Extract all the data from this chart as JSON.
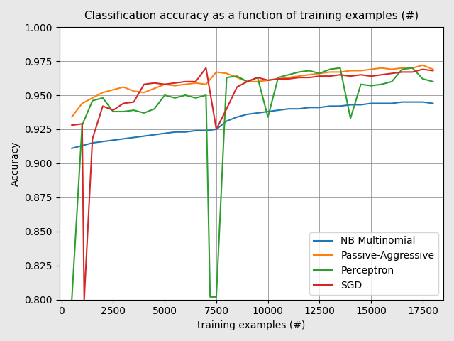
{
  "title": "Classification accuracy as a function of training examples (#)",
  "xlabel": "training examples (#)",
  "ylabel": "Accuracy",
  "ylim": [
    0.8,
    1.0
  ],
  "xlim": [
    -100,
    18500
  ],
  "grid": true,
  "series": {
    "NB Multinomial": {
      "color": "#1f77b4",
      "x": [
        500,
        1000,
        1500,
        2000,
        2500,
        3000,
        3500,
        4000,
        4500,
        5000,
        5500,
        6000,
        6500,
        7000,
        7500,
        8000,
        8500,
        9000,
        9500,
        10000,
        10500,
        11000,
        11500,
        12000,
        12500,
        13000,
        13500,
        14000,
        14500,
        15000,
        15500,
        16000,
        16500,
        17000,
        17500,
        18000
      ],
      "y": [
        0.911,
        0.913,
        0.915,
        0.916,
        0.917,
        0.918,
        0.919,
        0.92,
        0.921,
        0.922,
        0.923,
        0.923,
        0.924,
        0.924,
        0.925,
        0.931,
        0.934,
        0.936,
        0.937,
        0.938,
        0.939,
        0.94,
        0.94,
        0.941,
        0.941,
        0.942,
        0.942,
        0.943,
        0.943,
        0.944,
        0.944,
        0.944,
        0.945,
        0.945,
        0.945,
        0.944
      ]
    },
    "Passive-Aggressive": {
      "color": "#ff7f0e",
      "x": [
        500,
        1000,
        1500,
        2000,
        2500,
        3000,
        3500,
        4000,
        4500,
        5000,
        5500,
        6000,
        6500,
        7000,
        7500,
        8000,
        8500,
        9000,
        9500,
        10000,
        10500,
        11000,
        11500,
        12000,
        12500,
        13000,
        13500,
        14000,
        14500,
        15000,
        15500,
        16000,
        16500,
        17000,
        17500,
        18000
      ],
      "y": [
        0.934,
        0.944,
        0.948,
        0.952,
        0.954,
        0.956,
        0.953,
        0.952,
        0.955,
        0.958,
        0.957,
        0.958,
        0.959,
        0.958,
        0.967,
        0.966,
        0.963,
        0.96,
        0.96,
        0.961,
        0.962,
        0.963,
        0.964,
        0.965,
        0.966,
        0.967,
        0.967,
        0.968,
        0.968,
        0.969,
        0.97,
        0.969,
        0.97,
        0.97,
        0.972,
        0.969
      ]
    },
    "Perceptron": {
      "color": "#2ca02c",
      "x": [
        500,
        1000,
        1500,
        2000,
        2500,
        3000,
        3500,
        4000,
        4500,
        5000,
        5500,
        6000,
        6500,
        7000,
        7200,
        7500,
        8000,
        8500,
        9000,
        9500,
        10000,
        10500,
        11000,
        11500,
        12000,
        12500,
        13000,
        13500,
        14000,
        14500,
        15000,
        15500,
        16000,
        16500,
        17000,
        17500,
        18000
      ],
      "y": [
        0.8,
        0.928,
        0.946,
        0.948,
        0.938,
        0.938,
        0.939,
        0.937,
        0.94,
        0.95,
        0.948,
        0.95,
        0.948,
        0.95,
        0.802,
        0.802,
        0.963,
        0.964,
        0.96,
        0.963,
        0.934,
        0.963,
        0.965,
        0.967,
        0.968,
        0.966,
        0.969,
        0.97,
        0.933,
        0.958,
        0.957,
        0.958,
        0.96,
        0.969,
        0.97,
        0.962,
        0.96
      ]
    },
    "SGD": {
      "color": "#d62728",
      "x": [
        500,
        1000,
        1100,
        1500,
        2000,
        2500,
        3000,
        3500,
        4000,
        4500,
        5000,
        5500,
        6000,
        6500,
        7000,
        7500,
        8000,
        8500,
        9000,
        9500,
        10000,
        10500,
        11000,
        11500,
        12000,
        12500,
        13000,
        13500,
        14000,
        14500,
        15000,
        15500,
        16000,
        16500,
        17000,
        17500,
        18000
      ],
      "y": [
        0.928,
        0.929,
        0.8,
        0.918,
        0.942,
        0.939,
        0.944,
        0.945,
        0.958,
        0.959,
        0.958,
        0.959,
        0.96,
        0.96,
        0.97,
        0.925,
        0.94,
        0.956,
        0.96,
        0.963,
        0.961,
        0.962,
        0.962,
        0.963,
        0.963,
        0.964,
        0.964,
        0.965,
        0.964,
        0.965,
        0.964,
        0.965,
        0.966,
        0.967,
        0.967,
        0.969,
        0.968
      ]
    }
  },
  "legend_loc": "lower right",
  "xticks": [
    0,
    2500,
    5000,
    7500,
    10000,
    12500,
    15000,
    17500
  ],
  "yticks": [
    0.8,
    0.825,
    0.85,
    0.875,
    0.9,
    0.925,
    0.95,
    0.975,
    1.0
  ],
  "bg_color": "#ffffff",
  "fig_color": "#e8e8e8"
}
